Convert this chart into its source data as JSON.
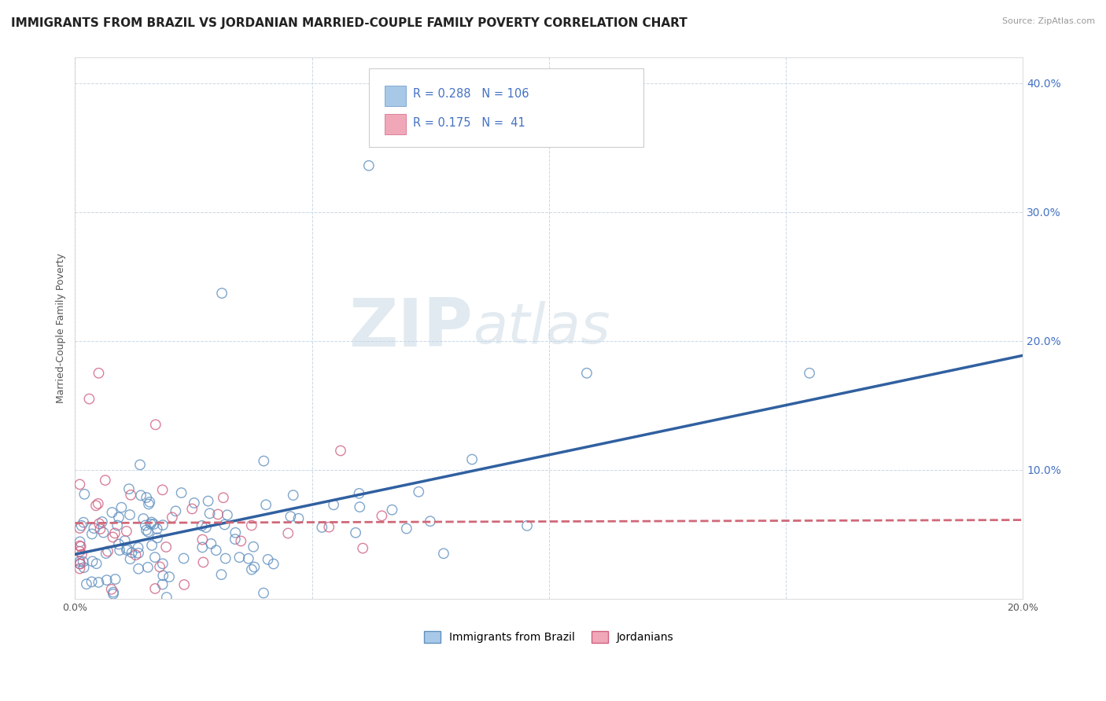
{
  "title": "IMMIGRANTS FROM BRAZIL VS JORDANIAN MARRIED-COUPLE FAMILY POVERTY CORRELATION CHART",
  "source": "Source: ZipAtlas.com",
  "ylabel": "Married-Couple Family Poverty",
  "xlim": [
    0.0,
    0.2
  ],
  "ylim": [
    0.0,
    0.42
  ],
  "xticks": [
    0.0,
    0.05,
    0.1,
    0.15,
    0.2
  ],
  "yticks": [
    0.0,
    0.1,
    0.2,
    0.3,
    0.4
  ],
  "legend1_label": "Immigrants from Brazil",
  "legend2_label": "Jordanians",
  "R1": "0.288",
  "N1": "106",
  "R2": "0.175",
  "N2": "41",
  "color_brazil": "#a8c8e8",
  "color_jordan": "#f0a8b8",
  "edge_brazil": "#6090c0",
  "edge_jordan": "#d06080",
  "line_brazil": "#3060a0",
  "line_jordan": "#d06878",
  "background_color": "#ffffff",
  "grid_color": "#c8d8e8",
  "title_fontsize": 11,
  "label_fontsize": 9,
  "tick_color": "#4472c4"
}
